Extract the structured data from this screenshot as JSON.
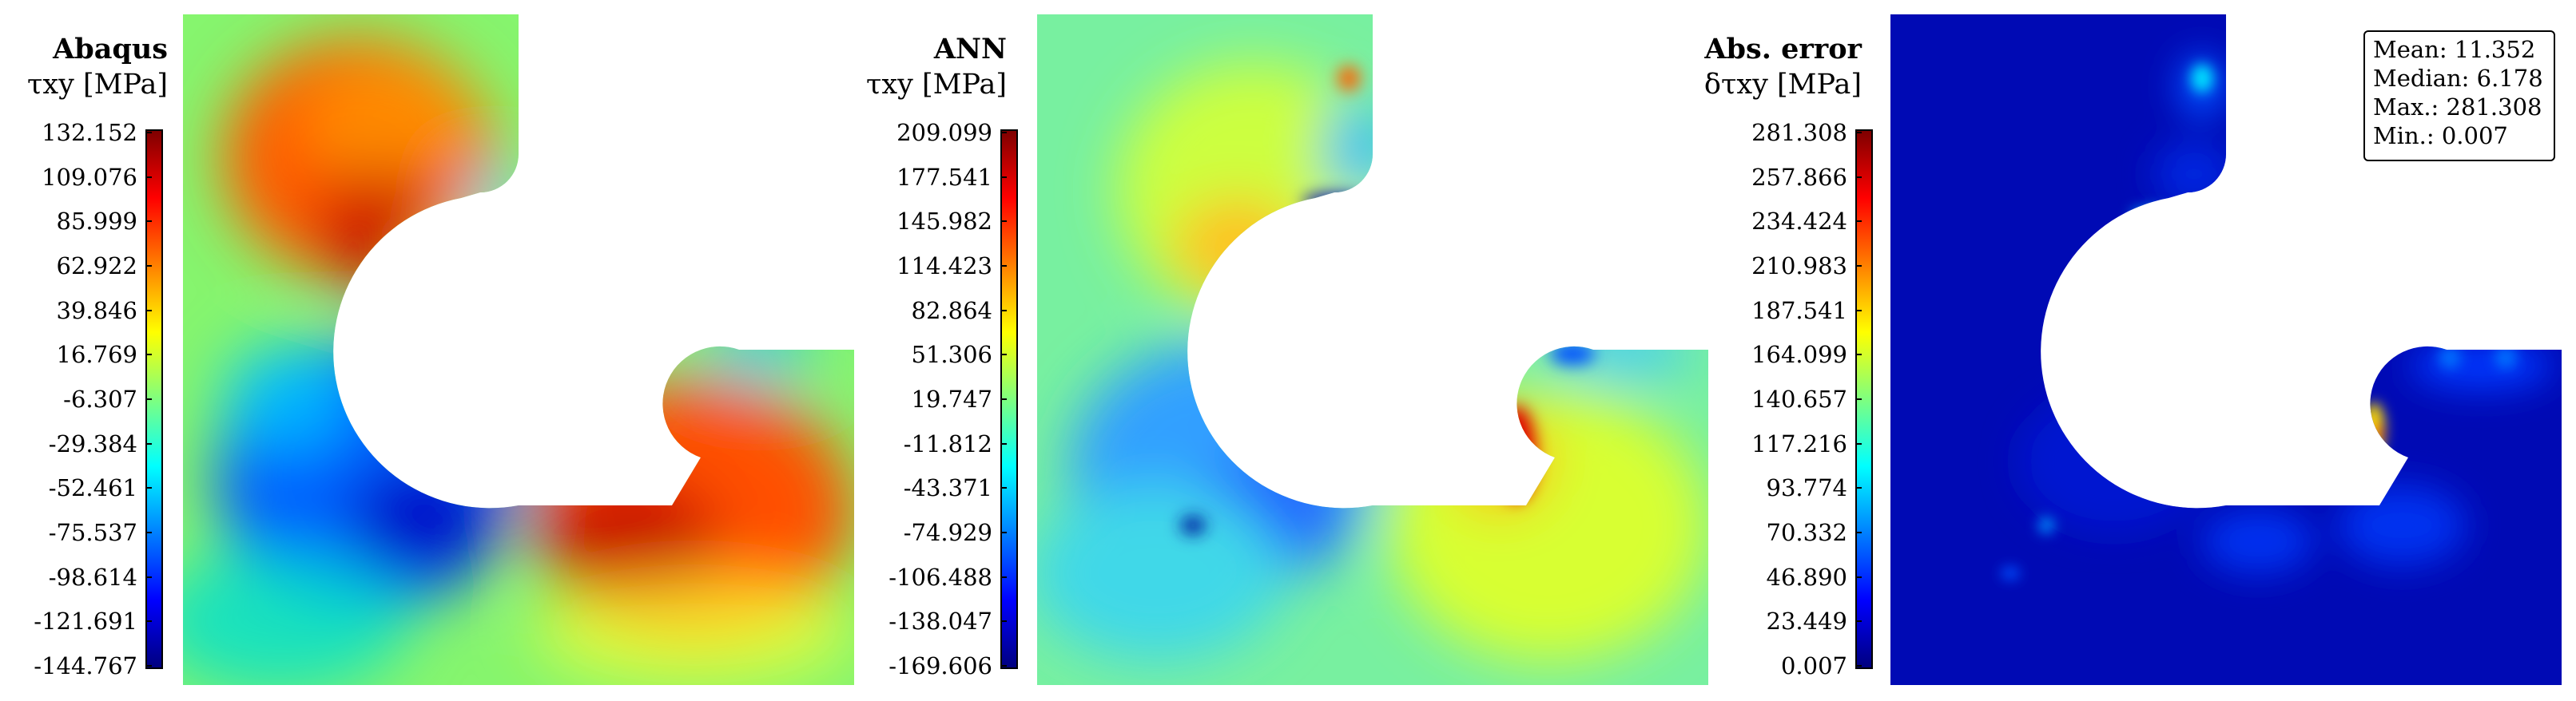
{
  "panels": [
    {
      "title": "Abaqus",
      "subtitle": "τxy [MPa]",
      "ticks": [
        "132.152",
        "109.076",
        "85.999",
        "62.922",
        "39.846",
        "16.769",
        "-6.307",
        "-29.384",
        "-52.461",
        "-75.537",
        "-98.614",
        "-121.691",
        "-144.767"
      ]
    },
    {
      "title": "ANN",
      "subtitle": "τxy [MPa]",
      "ticks": [
        "209.099",
        "177.541",
        "145.982",
        "114.423",
        "82.864",
        "51.306",
        "19.747",
        "-11.812",
        "-43.371",
        "-74.929",
        "-106.488",
        "-138.047",
        "-169.606"
      ]
    },
    {
      "title": "Abs. error",
      "subtitle": "δτxy [MPa]",
      "ticks": [
        "281.308",
        "257.866",
        "234.424",
        "210.983",
        "187.541",
        "164.099",
        "140.657",
        "117.216",
        "93.774",
        "70.332",
        "46.890",
        "23.449",
        "0.007"
      ]
    }
  ],
  "stats": {
    "mean": "Mean: 11.352",
    "median": "Median: 6.178",
    "max": "Max.: 281.308",
    "min": "Min.: 0.007"
  },
  "chart_data": [
    {
      "type": "heatmap",
      "title": "Abaqus",
      "colorbar_label": "τxy [MPa]",
      "colormap": "jet",
      "range": [
        -144.767,
        132.152
      ]
    },
    {
      "type": "heatmap",
      "title": "ANN",
      "colorbar_label": "τxy [MPa]",
      "colormap": "jet",
      "range": [
        -169.606,
        209.099
      ]
    },
    {
      "type": "heatmap",
      "title": "Abs. error",
      "colorbar_label": "δτxy [MPa]",
      "colormap": "jet",
      "range": [
        0.007,
        281.308
      ],
      "stats": {
        "mean": 11.352,
        "median": 6.178,
        "max": 281.308,
        "min": 0.007
      }
    }
  ]
}
